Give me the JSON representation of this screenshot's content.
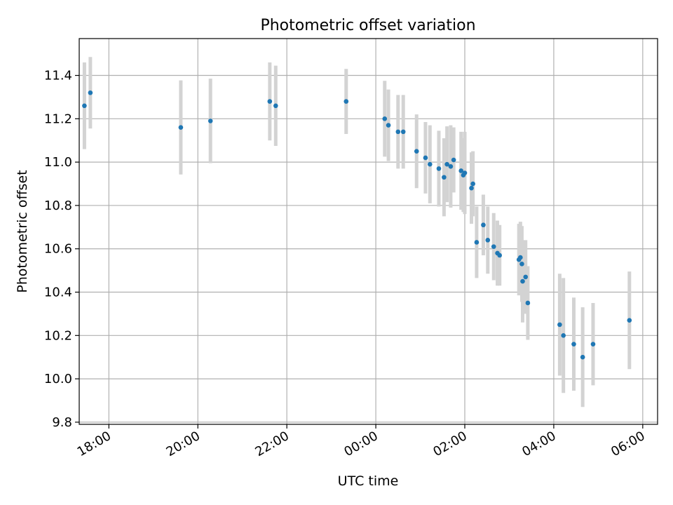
{
  "chart_data": {
    "type": "scatter",
    "title": "Photometric offset variation",
    "xlabel": "UTC time",
    "ylabel": "Photometric offset",
    "x_axis_type": "time",
    "x_axis_start_date": "day 1",
    "xlim": [
      "17:20",
      "06:20 (+1 day)"
    ],
    "ylim": [
      9.79,
      11.57
    ],
    "x_ticks": [
      {
        "value": "18:00",
        "label": "18:00"
      },
      {
        "value": "20:00",
        "label": "20:00"
      },
      {
        "value": "22:00",
        "label": "22:00"
      },
      {
        "value": "00:00",
        "label": "00:00"
      },
      {
        "value": "02:00",
        "label": "02:00"
      },
      {
        "value": "04:00",
        "label": "04:00"
      },
      {
        "value": "06:00",
        "label": "06:00"
      }
    ],
    "y_ticks": [
      "9.8",
      "10.0",
      "10.2",
      "10.4",
      "10.6",
      "10.8",
      "11.0",
      "11.2",
      "11.4"
    ],
    "grid": true,
    "colors": {
      "points": "#1f77b4",
      "error_bars": "#d3d3d3",
      "grid": "#b0b0b0"
    },
    "series": [
      {
        "x": [
          "17:27",
          "17:35",
          "19:37",
          "20:17",
          "21:37",
          "21:45",
          "23:20",
          "00:12",
          "00:17",
          "00:30",
          "00:37",
          "00:55",
          "01:07",
          "01:13",
          "01:25",
          "01:32",
          "01:36",
          "01:41",
          "01:45",
          "01:55",
          "01:58",
          "02:00",
          "02:09",
          "02:11",
          "02:16",
          "02:25",
          "02:31",
          "02:39",
          "02:44",
          "02:47",
          "03:13",
          "03:15",
          "03:17",
          "03:18",
          "03:22",
          "03:25",
          "04:08",
          "04:13",
          "04:27",
          "04:39",
          "04:53",
          "05:42"
        ],
        "y": [
          11.26,
          11.32,
          11.16,
          11.19,
          11.28,
          11.26,
          11.28,
          11.2,
          11.17,
          11.14,
          11.14,
          11.05,
          11.02,
          10.99,
          10.97,
          10.93,
          10.99,
          10.98,
          11.01,
          10.96,
          10.94,
          10.95,
          10.88,
          10.9,
          10.63,
          10.71,
          10.64,
          10.61,
          10.58,
          10.57,
          10.55,
          10.56,
          10.53,
          10.45,
          10.47,
          10.35,
          10.25,
          10.2,
          10.16,
          10.1,
          10.16,
          10.27
        ],
        "err": [
          0.2,
          0.165,
          0.217,
          0.195,
          0.18,
          0.185,
          0.15,
          0.175,
          0.165,
          0.17,
          0.17,
          0.17,
          0.165,
          0.18,
          0.175,
          0.18,
          0.175,
          0.19,
          0.15,
          0.18,
          0.17,
          0.19,
          0.165,
          0.15,
          0.165,
          0.14,
          0.155,
          0.155,
          0.15,
          0.14,
          0.165,
          0.165,
          0.175,
          0.19,
          0.17,
          0.17,
          0.235,
          0.265,
          0.215,
          0.23,
          0.19,
          0.225
        ]
      }
    ]
  }
}
